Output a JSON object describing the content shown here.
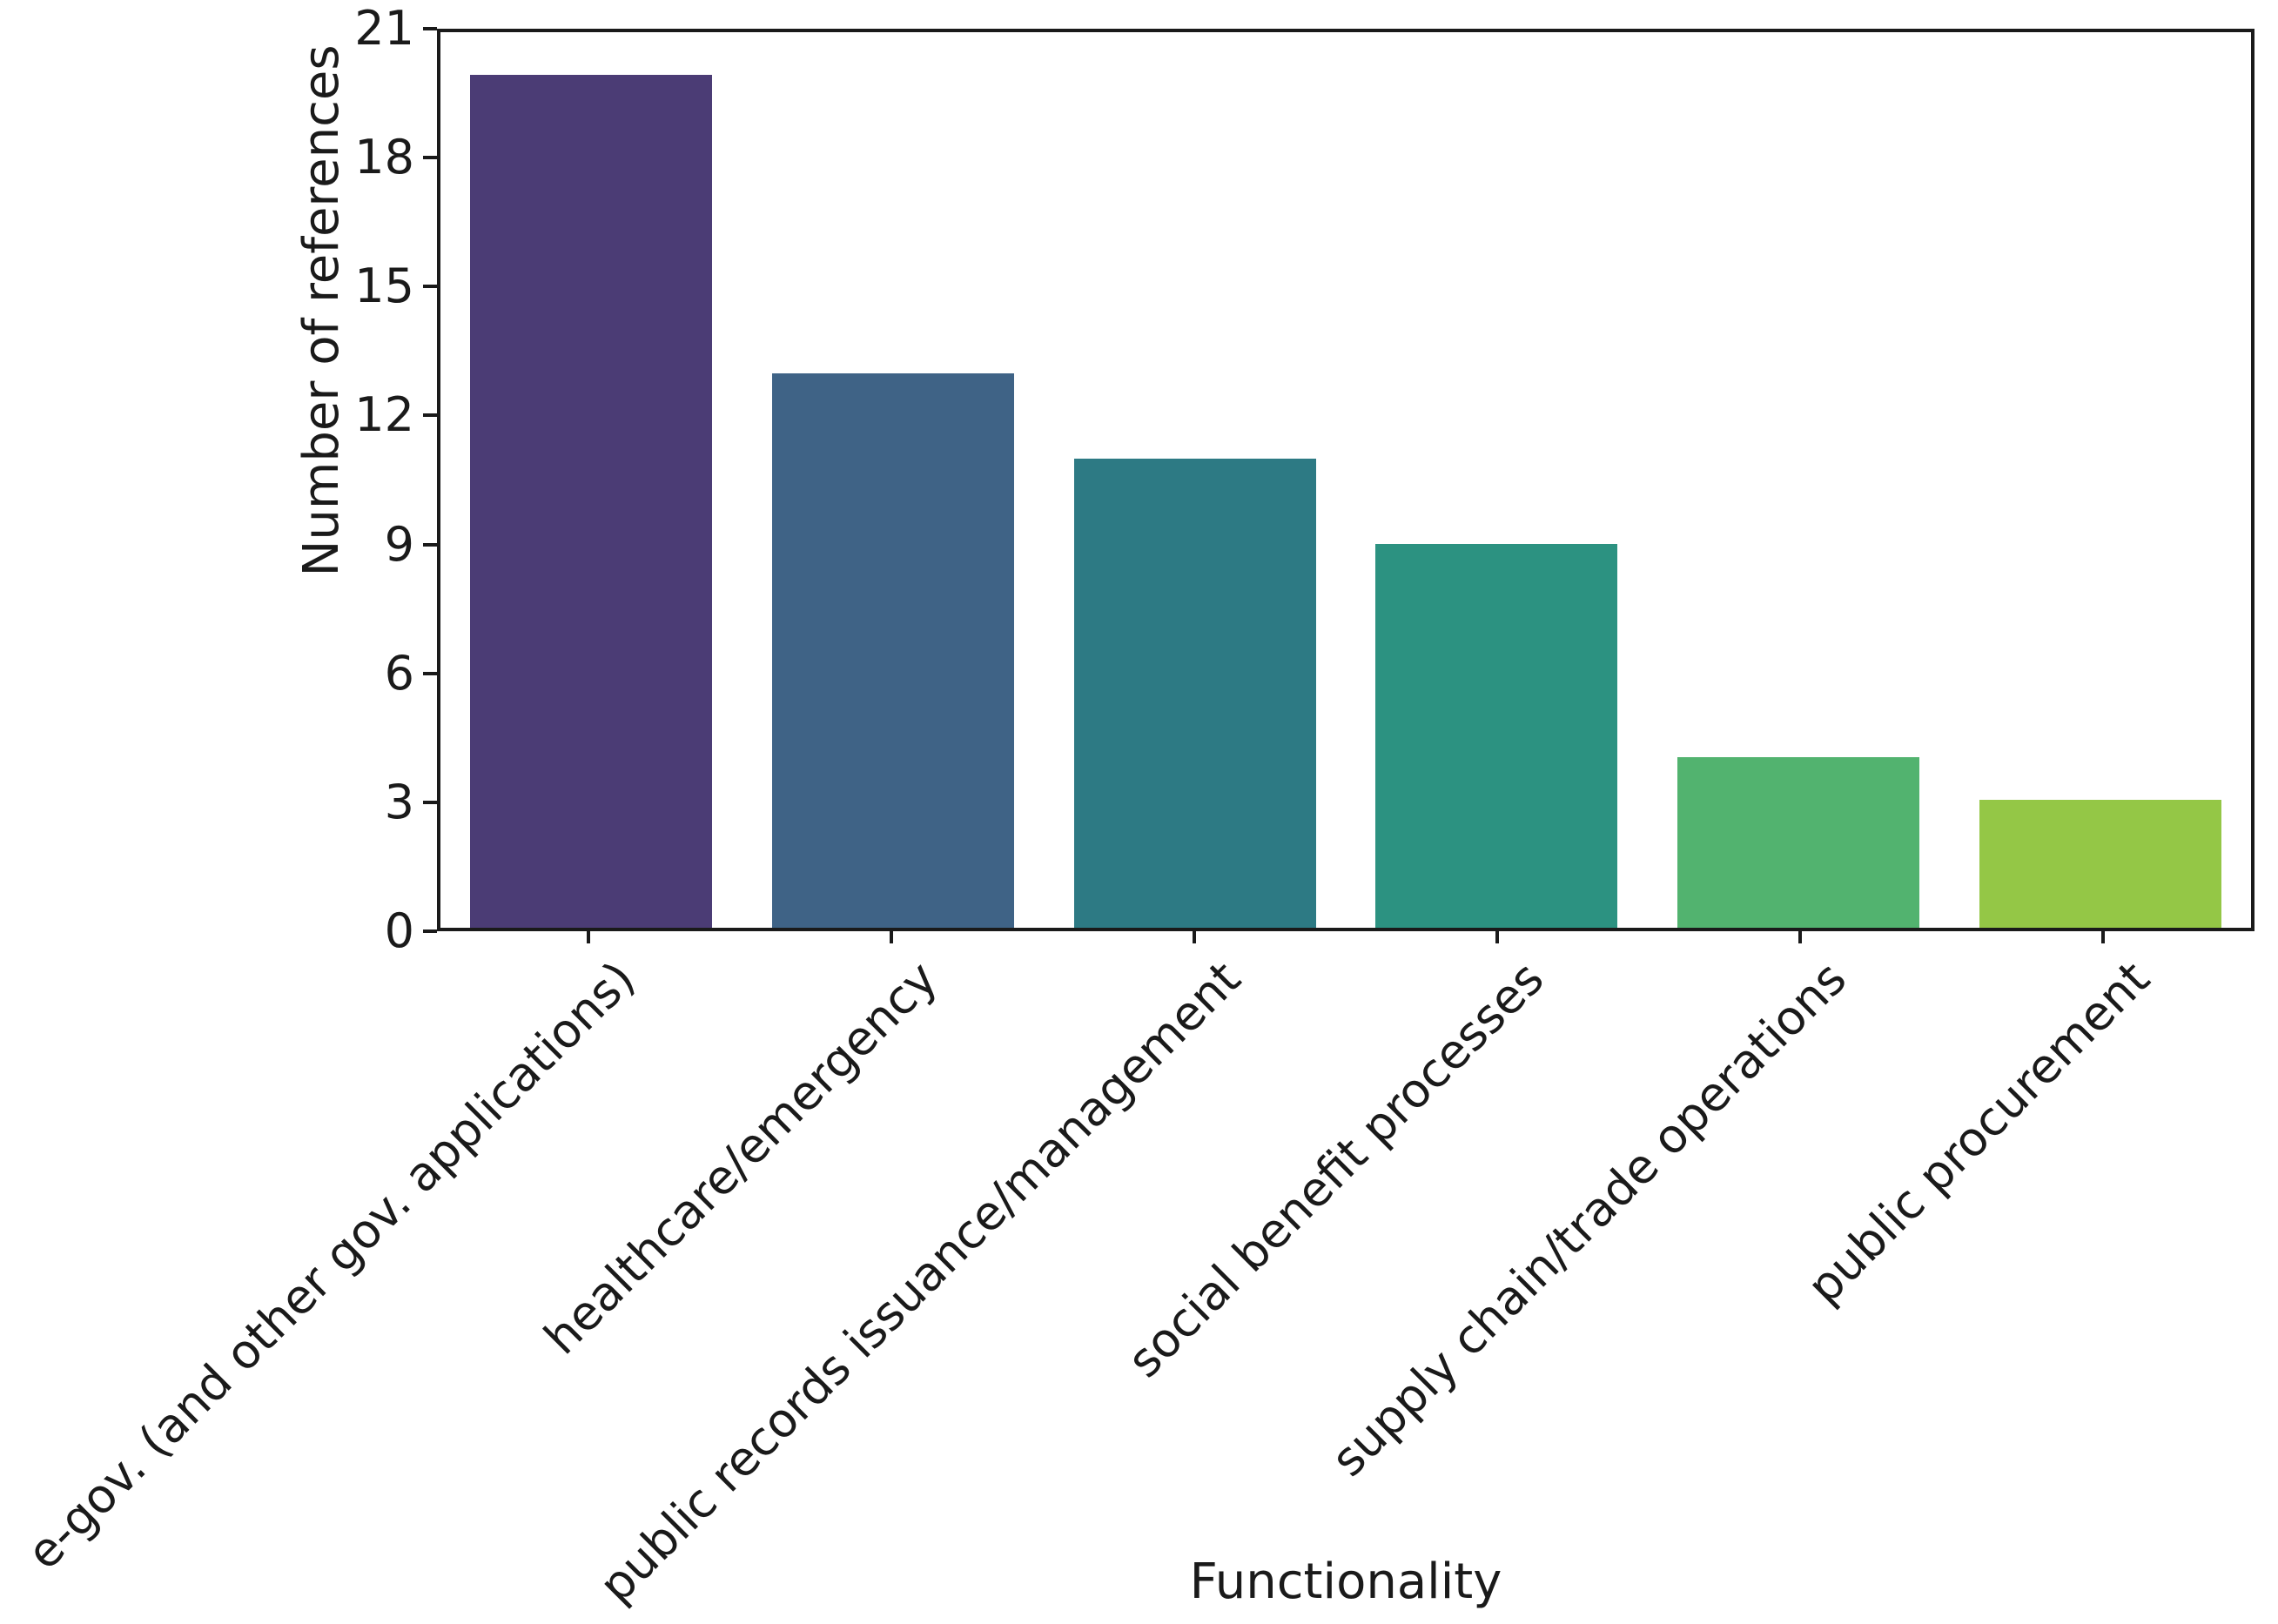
{
  "figure": {
    "background": "#ffffff",
    "axis_color": "#1a1a1a",
    "text_color": "#1a1a1a"
  },
  "chart_data": {
    "type": "bar",
    "title": "",
    "xlabel": "Functionality",
    "ylabel": "Number of references",
    "categories": [
      "e-gov. (and other gov. applications)",
      "healthcare/emergency",
      "public records issuance/management",
      "social benefit processes",
      "supply chain/trade operations",
      "public procurement"
    ],
    "values": [
      20,
      13,
      11,
      9,
      4,
      3
    ],
    "bar_colors": [
      "#4b3c75",
      "#3f6386",
      "#2d7a84",
      "#2c9281",
      "#52b36f",
      "#94c746"
    ],
    "ylim": [
      0,
      21
    ],
    "yticks": [
      0,
      3,
      6,
      9,
      12,
      15,
      18,
      21
    ],
    "grid": false,
    "legend_position": "none",
    "x_tick_label_rotation_deg": 45
  }
}
